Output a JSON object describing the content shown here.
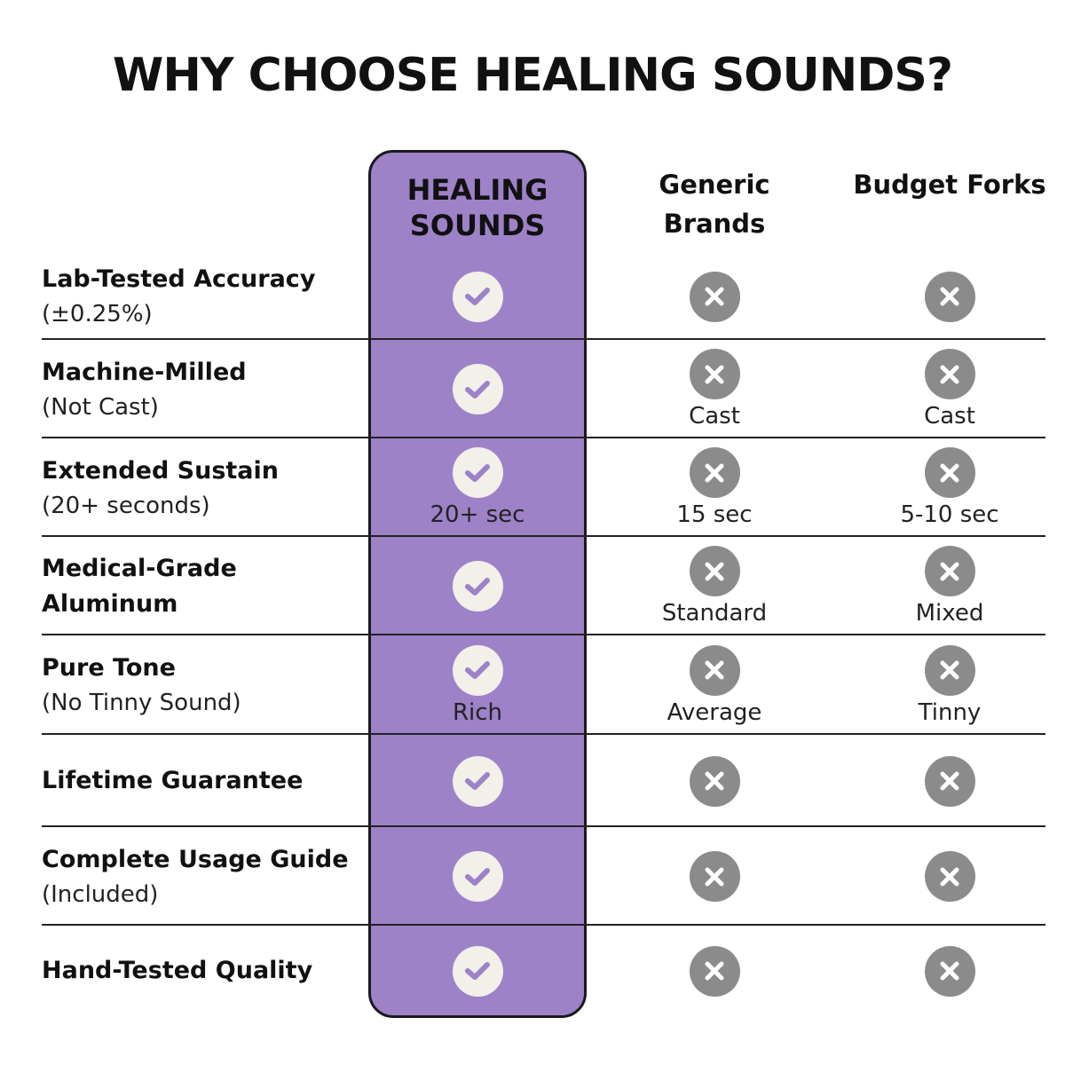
{
  "title": "WHY CHOOSE HEALING SOUNDS?",
  "columns": {
    "healing": "HEALING SOUNDS",
    "generic": "Generic Brands",
    "budget": "Budget Forks"
  },
  "colors": {
    "accent": "#9e82c8",
    "check_bg": "#f3efe9",
    "cross_bg": "#8b8b8b"
  },
  "rows": [
    {
      "feature": "Lab-Tested Accuracy",
      "sub": "(±0.25%)",
      "healing": "",
      "generic": "",
      "budget": ""
    },
    {
      "feature": "Machine-Milled",
      "sub": "(Not Cast)",
      "healing": "",
      "generic": "Cast",
      "budget": "Cast"
    },
    {
      "feature": "Extended Sustain",
      "sub": "(20+ seconds)",
      "healing": "20+ sec",
      "generic": "15 sec",
      "budget": "5-10 sec"
    },
    {
      "feature": "Medical-Grade Aluminum",
      "sub": "",
      "healing": "",
      "generic": "Standard",
      "budget": "Mixed"
    },
    {
      "feature": "Pure Tone",
      "sub": "(No Tinny Sound)",
      "healing": "Rich",
      "generic": "Average",
      "budget": "Tinny"
    },
    {
      "feature": "Lifetime Guarantee",
      "sub": "",
      "healing": "",
      "generic": "",
      "budget": ""
    },
    {
      "feature": "Complete Usage Guide",
      "sub": "(Included)",
      "healing": "",
      "generic": "",
      "budget": ""
    },
    {
      "feature": "Hand-Tested Quality",
      "sub": "",
      "healing": "",
      "generic": "",
      "budget": ""
    }
  ],
  "icons": {
    "healing": "check-circle-icon",
    "generic": "x-circle-icon",
    "budget": "x-circle-icon"
  }
}
